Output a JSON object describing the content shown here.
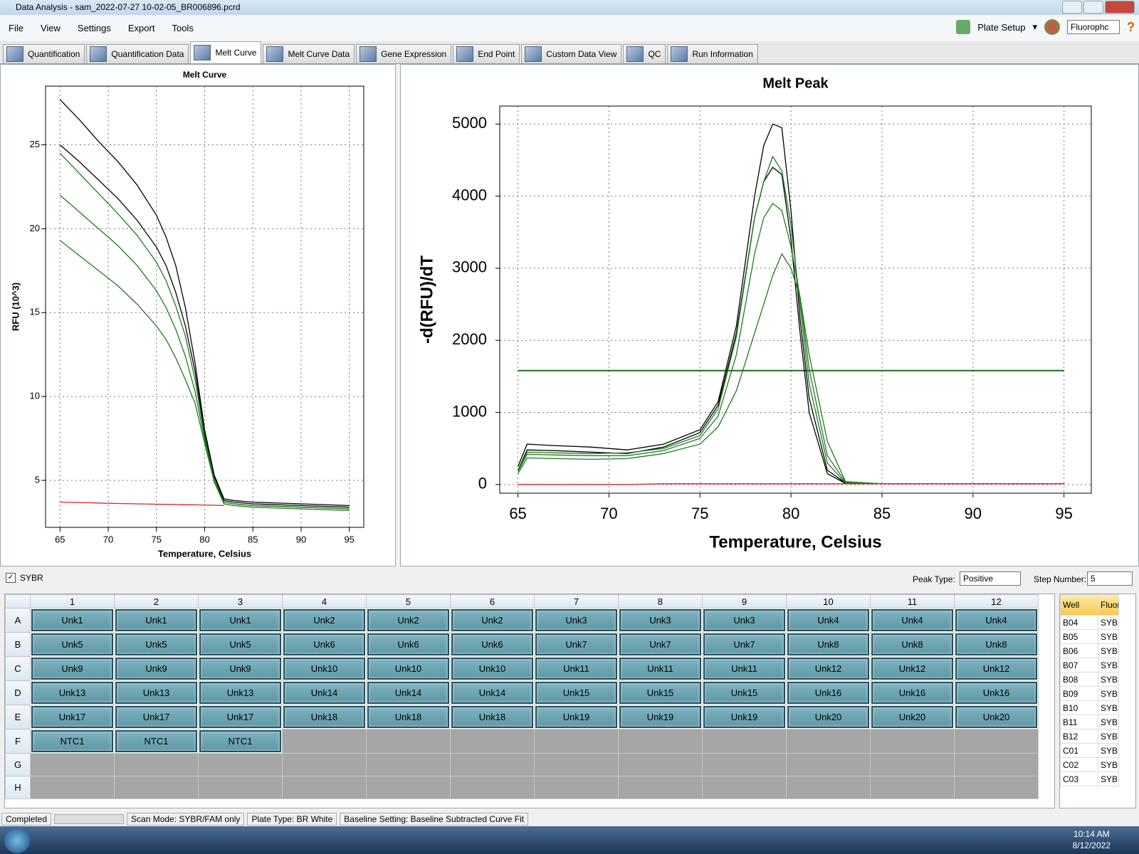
{
  "window": {
    "title": "Data Analysis - sam_2022-07-27 10-02-05_BR006896.pcrd"
  },
  "menu": [
    "File",
    "View",
    "Settings",
    "Export",
    "Tools"
  ],
  "toolbar": {
    "plate_setup": "Plate Setup",
    "fluorophore": "Fluorophc",
    "help": "?"
  },
  "tabs": [
    "Quantification",
    "Quantification Data",
    "Melt Curve",
    "Melt Curve Data",
    "Gene Expression",
    "End Point",
    "Custom Data View",
    "QC",
    "Run Information"
  ],
  "active_tab": 2,
  "chart_data": [
    {
      "type": "line",
      "title": "Melt Curve",
      "x_label": "Temperature, Celsius",
      "y_label": "RFU (10^3)",
      "x": [
        65,
        67,
        69,
        71,
        73,
        75,
        76,
        77,
        78,
        79,
        80,
        81,
        82,
        83,
        85,
        90,
        95
      ],
      "series": [
        {
          "color": "#000000",
          "values": [
            27.7,
            26.5,
            25.2,
            24.0,
            22.6,
            20.8,
            19.5,
            17.8,
            15.3,
            12.0,
            8.0,
            5.3,
            3.9,
            3.8,
            3.7,
            3.6,
            3.5
          ]
        },
        {
          "color": "#000000",
          "values": [
            25.0,
            24.0,
            22.9,
            21.8,
            20.5,
            18.9,
            17.8,
            16.2,
            14.2,
            11.5,
            7.8,
            5.2,
            3.8,
            3.7,
            3.6,
            3.5,
            3.4
          ]
        },
        {
          "color": "#1e7b1e",
          "values": [
            24.5,
            23.3,
            22.1,
            20.9,
            19.6,
            18.0,
            16.9,
            15.4,
            13.6,
            11.0,
            7.6,
            5.0,
            3.7,
            3.6,
            3.5,
            3.4,
            3.3
          ]
        },
        {
          "color": "#1e7b1e",
          "values": [
            22.0,
            21.0,
            20.0,
            19.0,
            17.8,
            16.3,
            15.3,
            14.0,
            12.4,
            10.3,
            7.4,
            5.0,
            3.7,
            3.6,
            3.5,
            3.4,
            3.3
          ]
        },
        {
          "color": "#1e7b1e",
          "values": [
            19.3,
            18.4,
            17.5,
            16.6,
            15.5,
            14.2,
            13.4,
            12.3,
            11.0,
            9.6,
            7.2,
            4.9,
            3.6,
            3.5,
            3.4,
            3.3,
            3.2
          ]
        },
        {
          "color": "#e02020",
          "values": [
            3.7,
            3.68,
            3.65,
            3.62,
            3.6,
            3.58,
            3.57,
            3.56,
            3.55,
            3.54,
            3.53,
            3.52,
            3.5,
            null,
            null,
            null,
            null
          ]
        }
      ],
      "xlim": [
        63.5,
        96.5
      ],
      "xticks": [
        65,
        70,
        75,
        80,
        85,
        90,
        95
      ],
      "ylim": [
        2.2,
        28.5
      ],
      "yticks": [
        5,
        10,
        15,
        20,
        25
      ],
      "grid": true
    },
    {
      "type": "line",
      "title": "Melt Peak",
      "x_label": "Temperature, Celsius",
      "y_label": "-d(RFU)/dT",
      "x": [
        65,
        65.5,
        67,
        69,
        71,
        73,
        75,
        76,
        77,
        78,
        78.5,
        79,
        79.5,
        80,
        80.5,
        81,
        82,
        83,
        85,
        90,
        95
      ],
      "series": [
        {
          "color": "#000000",
          "values": [
            250,
            560,
            540,
            520,
            480,
            560,
            760,
            1150,
            2200,
            4000,
            4700,
            5000,
            4950,
            3800,
            2300,
            1200,
            200,
            20,
            10,
            10,
            10
          ]
        },
        {
          "color": "#000000",
          "values": [
            200,
            480,
            470,
            450,
            430,
            520,
            720,
            1100,
            2100,
            3700,
            4200,
            4400,
            4300,
            3400,
            2100,
            1000,
            150,
            15,
            10,
            10,
            10
          ]
        },
        {
          "color": "#1e7b1e",
          "values": [
            200,
            450,
            440,
            430,
            440,
            500,
            680,
            1050,
            2050,
            3700,
            4200,
            4550,
            4350,
            3600,
            2500,
            1400,
            300,
            20,
            10,
            10,
            10
          ]
        },
        {
          "color": "#1e7b1e",
          "values": [
            180,
            420,
            410,
            400,
            400,
            470,
            640,
            950,
            1800,
            3200,
            3700,
            3900,
            3800,
            3300,
            2600,
            1600,
            400,
            30,
            10,
            10,
            10
          ]
        },
        {
          "color": "#1e7b1e",
          "values": [
            150,
            370,
            360,
            350,
            360,
            430,
            560,
            800,
            1300,
            2100,
            2500,
            2900,
            3200,
            3000,
            2600,
            1800,
            600,
            40,
            10,
            10,
            10
          ]
        },
        {
          "color": "#e02020",
          "values": [
            0,
            0,
            0,
            0,
            0,
            10,
            10,
            10,
            10,
            10,
            10,
            10,
            10,
            10,
            10,
            10,
            10,
            10,
            10,
            10,
            10
          ]
        }
      ],
      "threshold": 1580,
      "threshold_color": "#1a6b1a",
      "xlim": [
        64,
        96.5
      ],
      "xticks": [
        65,
        70,
        75,
        80,
        85,
        90,
        95
      ],
      "ylim": [
        -120,
        5250
      ],
      "yticks": [
        0,
        1000,
        2000,
        3000,
        4000,
        5000
      ],
      "grid": true
    }
  ],
  "controls": {
    "fluor": "SYBR",
    "peak_type_label": "Peak Type:",
    "peak_type": "Positive",
    "step_label": "Step Number:",
    "step": "5"
  },
  "plate": {
    "columns": [
      "1",
      "2",
      "3",
      "4",
      "5",
      "6",
      "7",
      "8",
      "9",
      "10",
      "11",
      "12"
    ],
    "rows": [
      {
        "label": "A",
        "cells": [
          "Unk1",
          "Unk1",
          "Unk1",
          "Unk2",
          "Unk2",
          "Unk2",
          "Unk3",
          "Unk3",
          "Unk3",
          "Unk4",
          "Unk4",
          "Unk4"
        ]
      },
      {
        "label": "B",
        "cells": [
          "Unk5",
          "Unk5",
          "Unk5",
          "Unk6",
          "Unk6",
          "Unk6",
          "Unk7",
          "Unk7",
          "Unk7",
          "Unk8",
          "Unk8",
          "Unk8"
        ]
      },
      {
        "label": "C",
        "cells": [
          "Unk9",
          "Unk9",
          "Unk9",
          "Unk10",
          "Unk10",
          "Unk10",
          "Unk11",
          "Unk11",
          "Unk11",
          "Unk12",
          "Unk12",
          "Unk12"
        ]
      },
      {
        "label": "D",
        "cells": [
          "Unk13",
          "Unk13",
          "Unk13",
          "Unk14",
          "Unk14",
          "Unk14",
          "Unk15",
          "Unk15",
          "Unk15",
          "Unk16",
          "Unk16",
          "Unk16"
        ]
      },
      {
        "label": "E",
        "cells": [
          "Unk17",
          "Unk17",
          "Unk17",
          "Unk18",
          "Unk18",
          "Unk18",
          "Unk19",
          "Unk19",
          "Unk19",
          "Unk20",
          "Unk20",
          "Unk20"
        ]
      },
      {
        "label": "F",
        "cells": [
          "NTC1",
          "NTC1",
          "NTC1",
          null,
          null,
          null,
          null,
          null,
          null,
          null,
          null,
          null
        ]
      },
      {
        "label": "G",
        "cells": [
          null,
          null,
          null,
          null,
          null,
          null,
          null,
          null,
          null,
          null,
          null,
          null
        ]
      },
      {
        "label": "H",
        "cells": [
          null,
          null,
          null,
          null,
          null,
          null,
          null,
          null,
          null,
          null,
          null,
          null
        ]
      }
    ]
  },
  "well_table": {
    "headers": [
      "Well",
      "Fluor"
    ],
    "rows": [
      [
        "B04",
        "SYBR"
      ],
      [
        "B05",
        "SYBR"
      ],
      [
        "B06",
        "SYBR"
      ],
      [
        "B07",
        "SYBR"
      ],
      [
        "B08",
        "SYBR"
      ],
      [
        "B09",
        "SYBR"
      ],
      [
        "B10",
        "SYBR"
      ],
      [
        "B11",
        "SYBR"
      ],
      [
        "B12",
        "SYBR"
      ],
      [
        "C01",
        "SYBR"
      ],
      [
        "C02",
        "SYBR"
      ],
      [
        "C03",
        "SYBR"
      ]
    ]
  },
  "status": [
    "Completed",
    "Scan Mode: SYBR/FAM only",
    "Plate Type: BR White",
    "Baseline Setting: Baseline Subtracted Curve Fit"
  ],
  "taskbar": {
    "time": "10:14 AM",
    "date": "8/12/2022"
  }
}
